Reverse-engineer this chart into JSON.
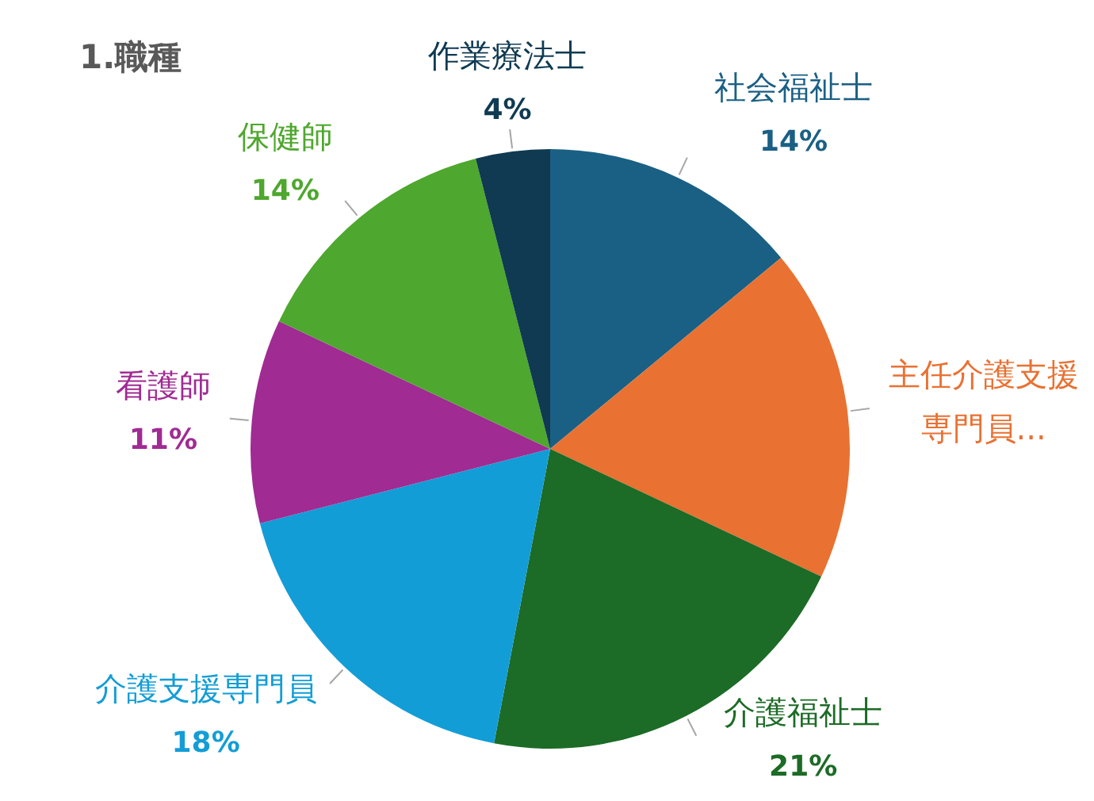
{
  "chart_data": {
    "type": "pie",
    "title": "1.職種",
    "categories": [
      "社会福祉士",
      "主任介護支援専門員...",
      "介護福祉士",
      "介護支援専門員",
      "看護師",
      "保健師",
      "作業療法士"
    ],
    "values": [
      14,
      18,
      21,
      18,
      11,
      14,
      4
    ],
    "value_labels": [
      "14%",
      null,
      "21%",
      "18%",
      "11%",
      "14%",
      "4%"
    ],
    "colors": [
      "#1a6084",
      "#e97132",
      "#1c6b26",
      "#139dd6",
      "#a02b93",
      "#4ea72e",
      "#0f3a52"
    ]
  }
}
